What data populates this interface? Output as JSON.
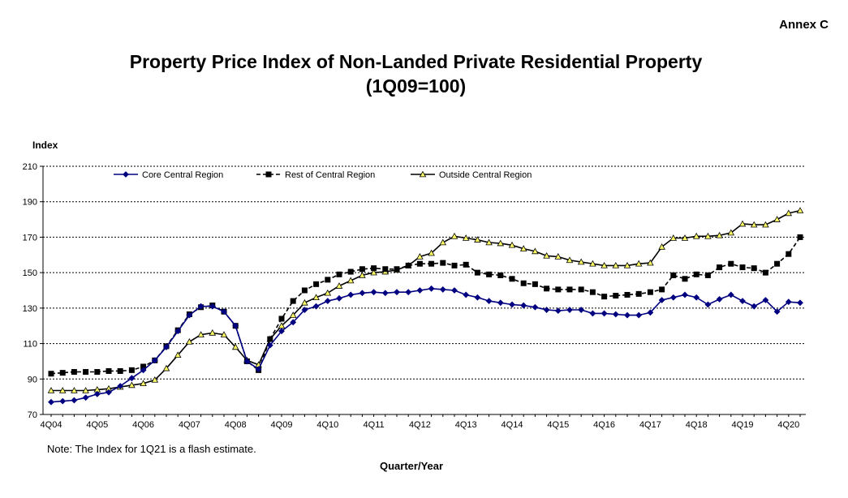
{
  "annex_label": "Annex C",
  "chart_data": {
    "type": "line",
    "title": "Property Price Index of Non-Landed Private Residential Property",
    "subtitle": "(1Q09=100)",
    "ylabel": "Index",
    "xlabel": "Quarter/Year",
    "note": "Note: The Index for 1Q21 is a flash estimate.",
    "ylim": [
      70,
      210
    ],
    "yticks": [
      70,
      90,
      110,
      130,
      150,
      170,
      190,
      210
    ],
    "grid": true,
    "legend_position": "top",
    "x_start_label": "4Q04",
    "xtick_labels": [
      "4Q04",
      "4Q05",
      "4Q06",
      "4Q07",
      "4Q08",
      "4Q09",
      "4Q10",
      "4Q11",
      "4Q12",
      "4Q13",
      "4Q14",
      "4Q15",
      "4Q16",
      "4Q17",
      "4Q18",
      "4Q19",
      "4Q20"
    ],
    "series": [
      {
        "name": "Core Central Region",
        "color": "#000080",
        "marker": "diamond",
        "line_style": "solid",
        "values": [
          77,
          77.5,
          78,
          79.5,
          81.5,
          82.5,
          86,
          90.5,
          95,
          100.5,
          108,
          117,
          126,
          131,
          131,
          128,
          120,
          100,
          95.5,
          109,
          117,
          122,
          129,
          131,
          134,
          135.5,
          137.5,
          138.5,
          139,
          138.5,
          139,
          139,
          140,
          141,
          140.5,
          140,
          137.5,
          136,
          134,
          133,
          132,
          131.5,
          130.5,
          129,
          128.5,
          129,
          129,
          127,
          127,
          126.5,
          126,
          126,
          127.5,
          134.5,
          136,
          137.5,
          136,
          132,
          135,
          137.5,
          134,
          131,
          134.5,
          128,
          133.5,
          133
        ]
      },
      {
        "name": "Rest of Central Region",
        "color": "#000000",
        "marker": "square",
        "line_style": "dashed",
        "values": [
          93,
          93.5,
          94,
          94,
          94,
          94.5,
          94.5,
          95,
          97,
          100.5,
          108.5,
          117.5,
          126.5,
          130.5,
          131.5,
          128,
          120,
          100,
          95,
          112.5,
          124,
          134,
          140,
          143.5,
          146,
          149,
          150.5,
          152,
          152.5,
          152,
          152,
          154,
          155,
          155,
          155.5,
          154,
          154.5,
          150,
          149,
          148.5,
          146.5,
          144,
          143.5,
          141,
          140.5,
          140.5,
          140.5,
          139,
          136.5,
          137,
          137.5,
          138,
          139,
          140.5,
          148.5,
          146.5,
          149,
          148.5,
          153,
          155,
          153,
          152.5,
          150,
          155,
          160.5,
          170
        ]
      },
      {
        "name": "Outside Central Region",
        "color": "#000000",
        "fill": "#ffff66",
        "marker": "triangle",
        "line_style": "solid",
        "values": [
          83.5,
          83.5,
          83.5,
          83.5,
          84,
          84.5,
          85.5,
          86.5,
          87.5,
          89.5,
          96,
          103.5,
          111,
          115,
          116,
          115,
          108,
          100.5,
          98,
          112.5,
          120,
          126,
          133,
          136,
          138.5,
          142.5,
          145.5,
          148.5,
          150,
          150.5,
          151.5,
          154,
          159,
          161,
          167,
          170.5,
          169.5,
          168.5,
          167,
          166.5,
          165.5,
          163.5,
          162,
          159.5,
          159,
          157,
          156,
          155,
          154,
          154,
          154,
          155,
          155.5,
          164.5,
          169.5,
          169.5,
          170.5,
          170.5,
          171,
          172.5,
          177.5,
          177,
          177,
          180,
          183.5,
          185
        ]
      }
    ]
  }
}
